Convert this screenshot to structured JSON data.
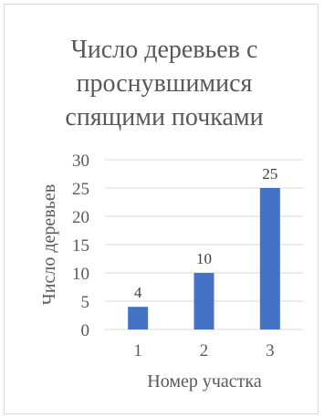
{
  "chart_data": {
    "type": "bar",
    "title_lines": [
      "Число деревьев с",
      "проснувшимися",
      "спящими почками"
    ],
    "xlabel": "Номер участка",
    "ylabel": "Число деревьев",
    "categories": [
      "1",
      "2",
      "3"
    ],
    "values": [
      4,
      10,
      25
    ],
    "ylim": [
      0,
      30
    ],
    "yticks": [
      0,
      5,
      10,
      15,
      20,
      25,
      30
    ],
    "grid": true,
    "legend": "none",
    "bar_color": "#4472c4",
    "data_labels": [
      "4",
      "10",
      "25"
    ]
  }
}
